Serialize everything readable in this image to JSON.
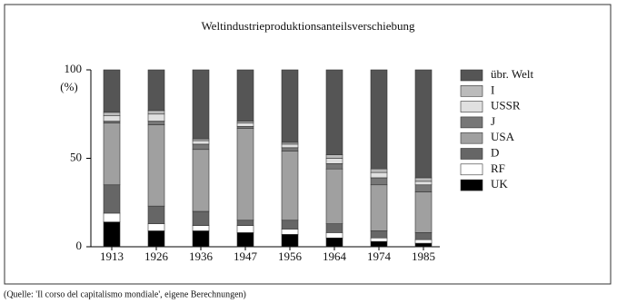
{
  "chart_data": {
    "type": "stacked_bar",
    "title": "Weltindustrieproduktionsanteilsverschiebung",
    "y_label": "(%)",
    "source": "(Quelle: 'Il corso del capitalismo mondiale', eigene Berechnungen)",
    "categories": [
      "1913",
      "1926",
      "1936",
      "1947",
      "1956",
      "1964",
      "1974",
      "1985"
    ],
    "ylim": [
      0,
      100
    ],
    "yticks": [
      0,
      50,
      100
    ],
    "series": [
      {
        "name": "UK",
        "color": "#000000",
        "values": [
          14,
          9,
          9,
          8,
          7,
          5,
          3,
          2
        ]
      },
      {
        "name": "RF",
        "color": "#ffffff",
        "values": [
          5,
          4,
          3,
          4,
          3,
          3,
          2,
          2
        ]
      },
      {
        "name": "D",
        "color": "#666666",
        "values": [
          16,
          10,
          8,
          3,
          5,
          5,
          4,
          4
        ]
      },
      {
        "name": "USA",
        "color": "#a0a0a0",
        "values": [
          35,
          46,
          35,
          52,
          39,
          31,
          26,
          23
        ]
      },
      {
        "name": "J",
        "color": "#777777",
        "values": [
          1,
          2,
          3,
          1,
          2,
          3,
          4,
          4
        ]
      },
      {
        "name": "USSR",
        "color": "#e0e0e0",
        "values": [
          3,
          4,
          2,
          2,
          2,
          3,
          3,
          2
        ]
      },
      {
        "name": "I",
        "color": "#bbbbbb",
        "values": [
          2,
          2,
          1,
          1,
          1,
          2,
          2,
          2
        ]
      },
      {
        "name": "übr. Welt",
        "color": "#555555",
        "values": [
          24,
          23,
          39,
          29,
          41,
          48,
          56,
          61
        ]
      }
    ]
  }
}
